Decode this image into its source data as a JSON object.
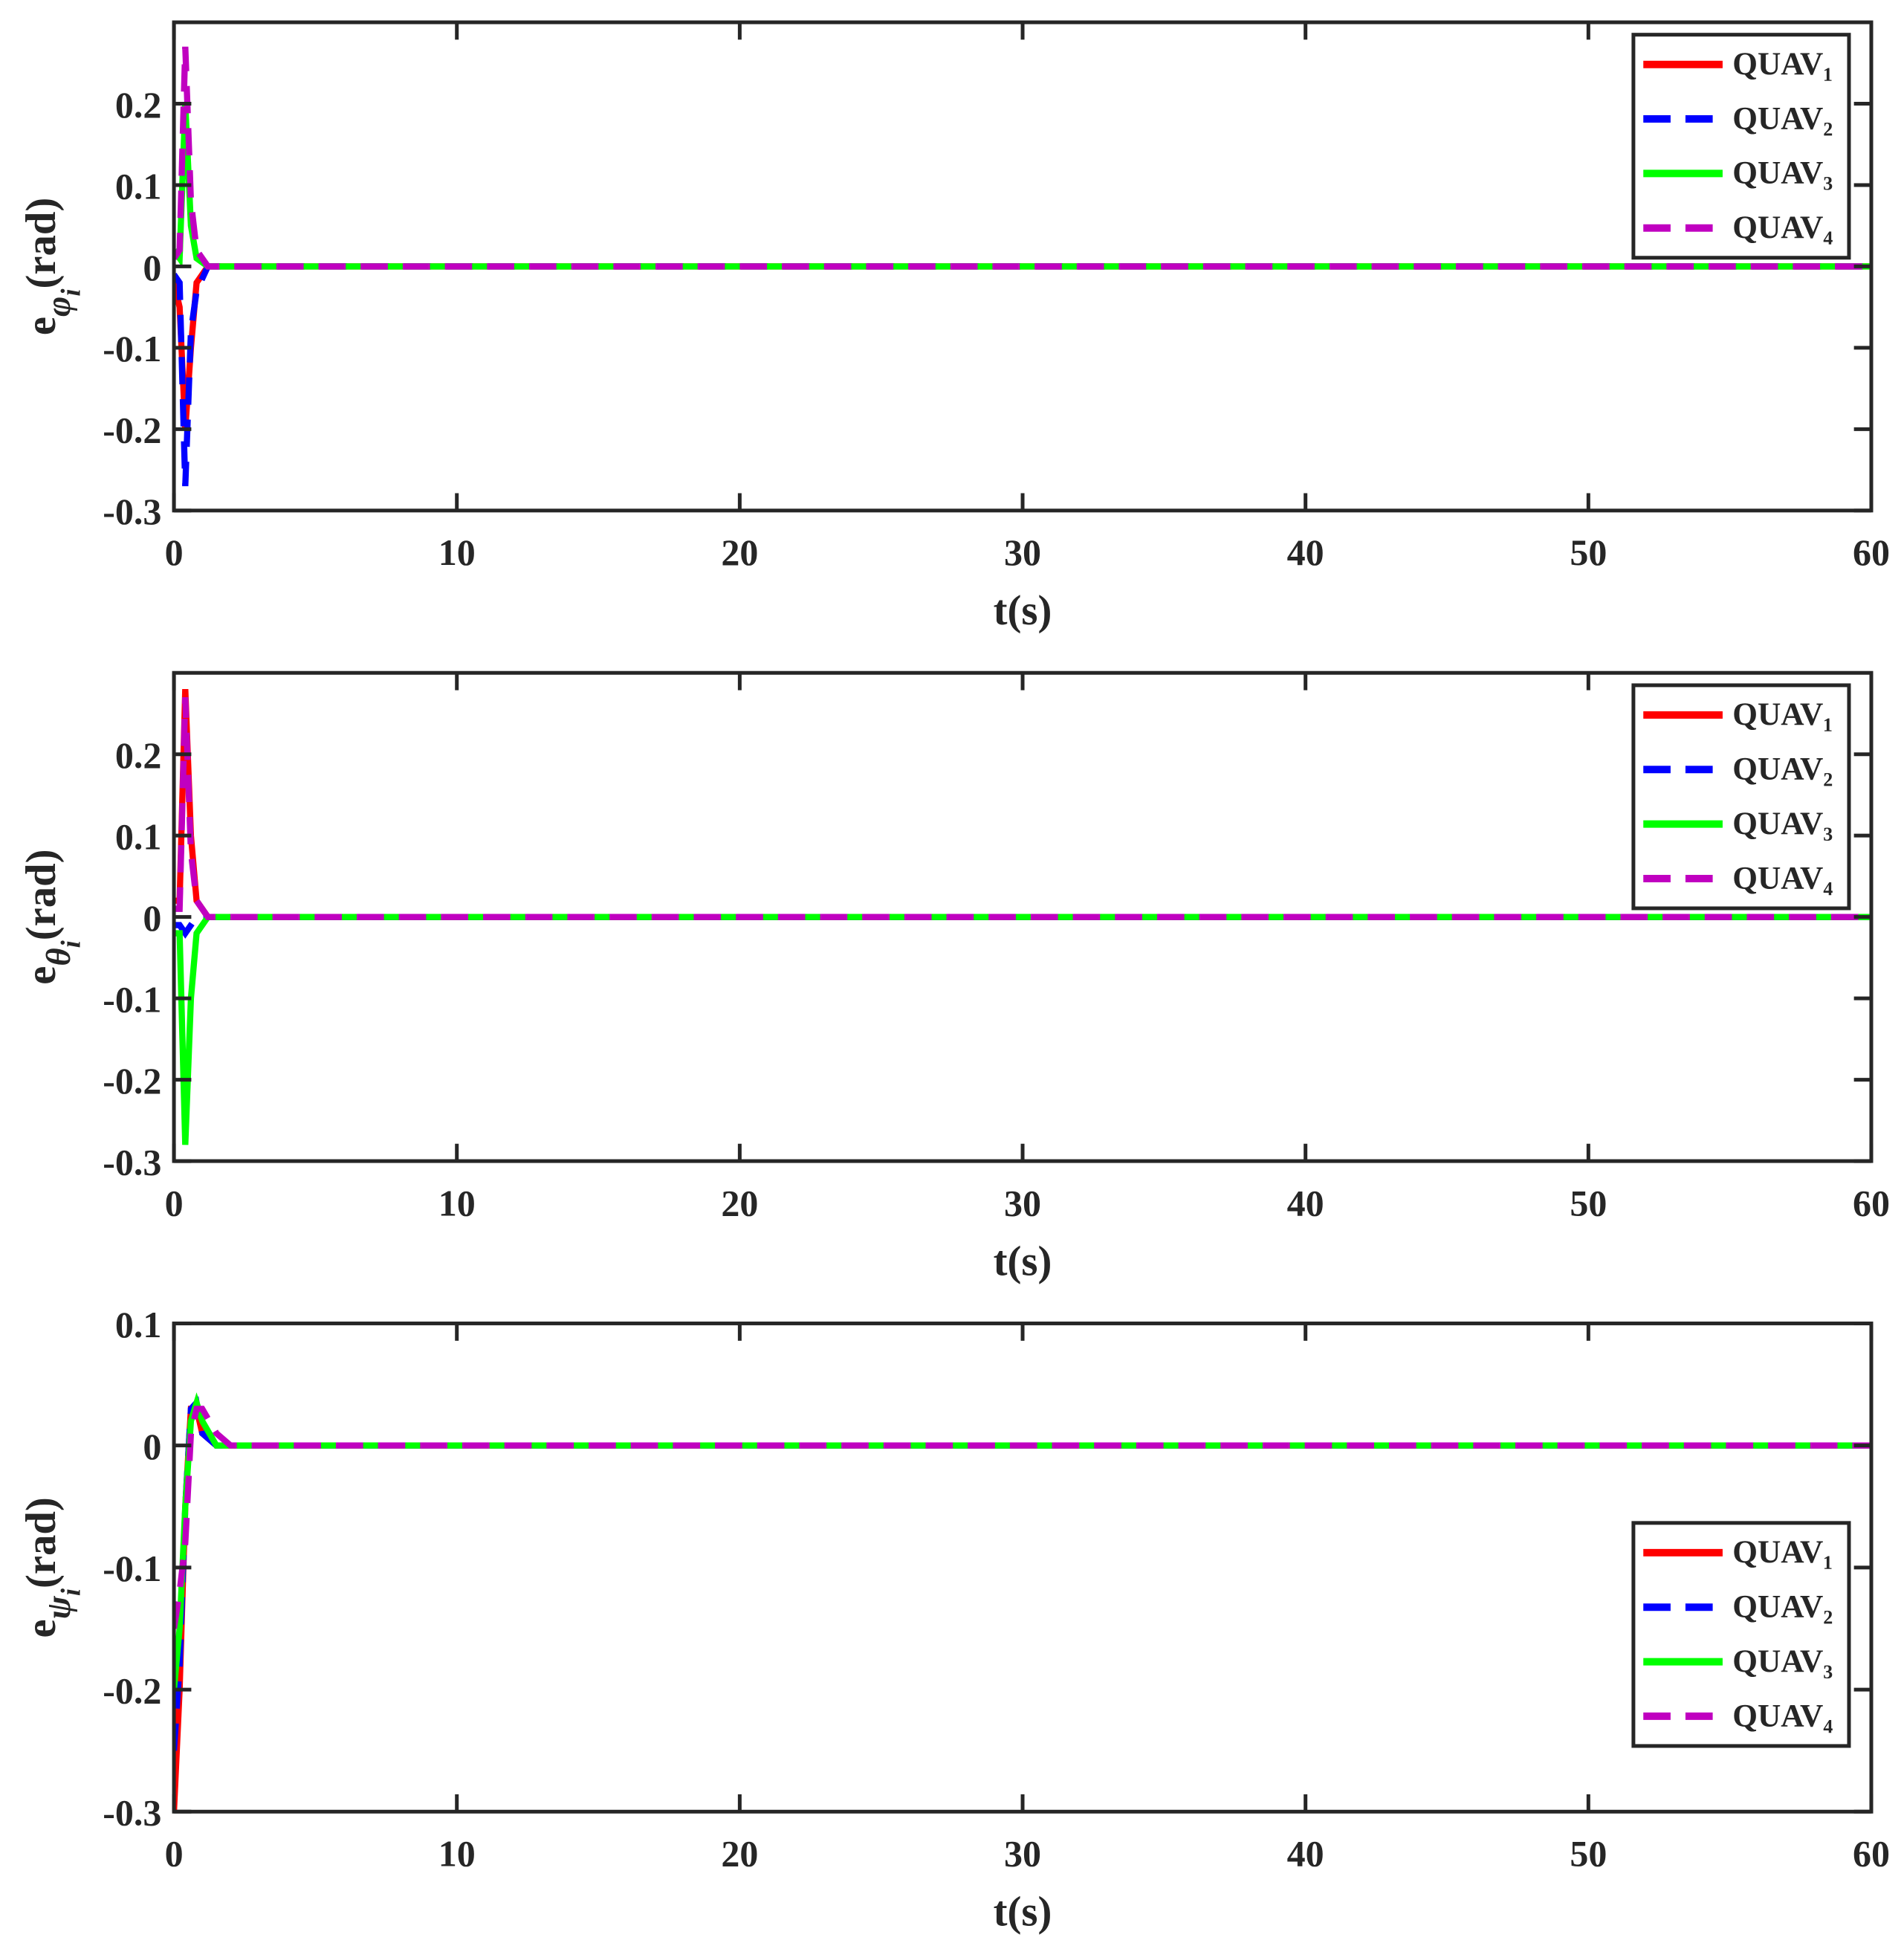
{
  "chart_data": [
    {
      "type": "line",
      "x_label": "t(s)",
      "y_label": [
        "e",
        "φ",
        "i",
        "(rad)"
      ],
      "x": [
        0,
        0.2,
        0.4,
        0.6,
        0.8,
        1.2,
        2,
        60
      ],
      "xlim": [
        0,
        60
      ],
      "xticks": [
        0,
        10,
        20,
        30,
        40,
        50,
        60
      ],
      "ylim": [
        -0.3,
        0.3
      ],
      "yticks": [
        -0.3,
        -0.2,
        -0.1,
        0,
        0.1,
        0.2
      ],
      "legend": "northeast",
      "series": [
        {
          "name": "QUAV₁",
          "color": "#ff0000",
          "line_style": "solid",
          "values": [
            -0.02,
            -0.05,
            -0.2,
            -0.1,
            -0.02,
            0,
            0,
            0
          ]
        },
        {
          "name": "QUAV₂",
          "color": "#0000ff",
          "line_style": "dashed",
          "values": [
            -0.01,
            -0.02,
            -0.27,
            -0.08,
            -0.03,
            0,
            0,
            0
          ]
        },
        {
          "name": "QUAV₃",
          "color": "#00ff00",
          "line_style": "solid",
          "values": [
            0.02,
            0.01,
            0.2,
            0.05,
            0.01,
            0,
            0,
            0
          ]
        },
        {
          "name": "QUAV₄",
          "color": "#c000c0",
          "line_style": "dashed",
          "values": [
            0.01,
            0.02,
            0.27,
            0.08,
            0.02,
            0,
            0,
            0
          ]
        }
      ]
    },
    {
      "type": "line",
      "x_label": "t(s)",
      "y_label": [
        "e",
        "θ",
        "i",
        "(rad)"
      ],
      "x": [
        0,
        0.2,
        0.4,
        0.6,
        0.8,
        1.2,
        2,
        60
      ],
      "xlim": [
        0,
        60
      ],
      "xticks": [
        0,
        10,
        20,
        30,
        40,
        50,
        60
      ],
      "ylim": [
        -0.3,
        0.3
      ],
      "yticks": [
        -0.3,
        -0.2,
        -0.1,
        0,
        0.1,
        0.2
      ],
      "legend": "northeast",
      "series": [
        {
          "name": "QUAV₁",
          "color": "#ff0000",
          "line_style": "solid",
          "values": [
            0.02,
            0.02,
            0.28,
            0.1,
            0.02,
            0,
            0,
            0
          ]
        },
        {
          "name": "QUAV₂",
          "color": "#0000ff",
          "line_style": "dashed",
          "values": [
            -0.01,
            -0.01,
            -0.02,
            -0.01,
            0,
            0,
            0,
            0
          ]
        },
        {
          "name": "QUAV₃",
          "color": "#00ff00",
          "line_style": "solid",
          "values": [
            -0.02,
            -0.02,
            -0.28,
            -0.1,
            -0.02,
            0,
            0,
            0
          ]
        },
        {
          "name": "QUAV₄",
          "color": "#c000c0",
          "line_style": "dashed",
          "values": [
            0.01,
            0.01,
            0.27,
            0.08,
            0.02,
            0,
            0,
            0
          ]
        }
      ]
    },
    {
      "type": "line",
      "x_label": "t(s)",
      "y_label": [
        "e",
        "ψ",
        "i",
        "(rad)"
      ],
      "x": [
        0,
        0.2,
        0.4,
        0.6,
        0.8,
        1,
        1.5,
        2,
        60
      ],
      "xlim": [
        0,
        60
      ],
      "xticks": [
        0,
        10,
        20,
        30,
        40,
        50,
        60
      ],
      "ylim": [
        -0.3,
        0.1
      ],
      "yticks": [
        -0.3,
        -0.2,
        -0.1,
        0,
        0.1
      ],
      "legend": "east",
      "series": [
        {
          "name": "QUAV₁",
          "color": "#ff0000",
          "line_style": "solid",
          "values": [
            -0.3,
            -0.2,
            -0.05,
            0.03,
            0.03,
            0.01,
            0,
            0,
            0
          ]
        },
        {
          "name": "QUAV₂",
          "color": "#0000ff",
          "line_style": "dashed",
          "values": [
            -0.25,
            -0.18,
            -0.05,
            0.03,
            0.035,
            0.01,
            0,
            0,
            0
          ]
        },
        {
          "name": "QUAV₃",
          "color": "#00ff00",
          "line_style": "solid",
          "values": [
            -0.2,
            -0.15,
            -0.05,
            0.02,
            0.035,
            0.02,
            0,
            0,
            0
          ]
        },
        {
          "name": "QUAV₄",
          "color": "#c000c0",
          "line_style": "dashed",
          "values": [
            -0.15,
            -0.12,
            -0.08,
            0.01,
            0.03,
            0.03,
            0.01,
            0,
            0
          ]
        }
      ]
    }
  ]
}
